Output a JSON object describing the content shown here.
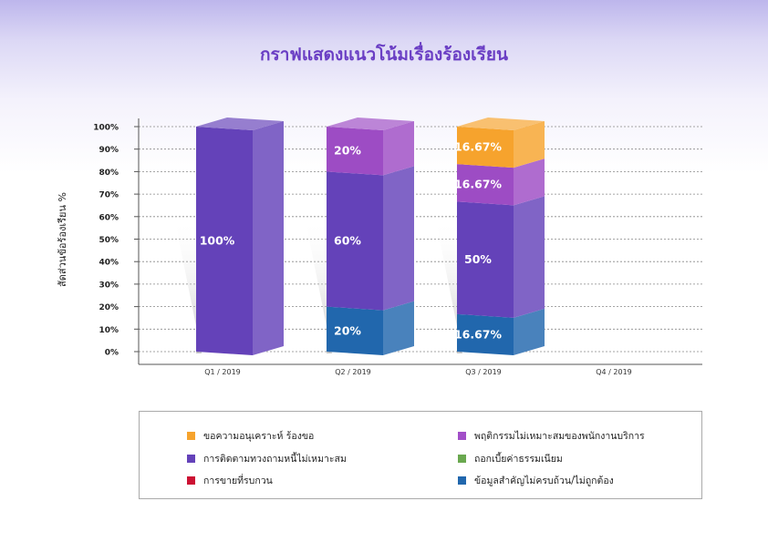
{
  "chart_data": {
    "type": "bar",
    "stacked": true,
    "title": "กราฟแสดงแนวโน้มเรื่องร้องเรียน",
    "ylabel": "สัดส่วนข้อร้องเรียน %",
    "xlabel": "",
    "ylim": [
      0,
      100
    ],
    "yticks": [
      "0%",
      "10%",
      "20%",
      "30%",
      "40%",
      "50%",
      "60%",
      "70%",
      "80%",
      "90%",
      "100%"
    ],
    "grid": true,
    "categories": [
      "Q1 / 2019",
      "Q2 / 2019",
      "Q3 / 2019",
      "Q4 / 2019"
    ],
    "series": [
      {
        "name": "ข้อมูลสำคัญไม่ครบถ้วน/ไม่ถูกต้อง",
        "color": "#2167ad",
        "values": [
          0,
          20,
          16.67,
          0
        ],
        "labels": [
          "",
          "20%",
          "16.67%",
          ""
        ]
      },
      {
        "name": "การติดตามทวงถามหนี้ไม่เหมาะสม",
        "color": "#6442b9",
        "values": [
          100,
          60,
          50,
          0
        ],
        "labels": [
          "100%",
          "60%",
          "50%",
          ""
        ]
      },
      {
        "name": "พฤติกรรมไม่เหมาะสมของพนักงานบริการ",
        "color": "#9d4cc4",
        "values": [
          0,
          20,
          16.67,
          0
        ],
        "labels": [
          "",
          "20%",
          "16.67%",
          ""
        ]
      },
      {
        "name": "ขอความอนุเคราะห์ ร้องขอ",
        "color": "#f6a32d",
        "values": [
          0,
          0,
          16.67,
          0
        ],
        "labels": [
          "",
          "",
          "16.67%",
          ""
        ]
      }
    ],
    "legend_position": "bottom"
  },
  "legend": {
    "items": [
      {
        "label": "ขอความอนุเคราะห์ ร้องขอ",
        "color": "#f6a32d"
      },
      {
        "label": "พฤติกรรมไม่เหมาะสมของพนักงานบริการ",
        "color": "#a24fc8"
      },
      {
        "label": "การติดตามทวงถามหนี้ไม่เหมาะสม",
        "color": "#6442b9"
      },
      {
        "label": "ถอกเบี้ยค่าธรรมเนียม",
        "color": "#6aa84f"
      },
      {
        "label": "การขายที่รบกวน",
        "color": "#cc1133"
      },
      {
        "label": "ข้อมูลสำคัญไม่ครบถ้วน/ไม่ถูกต้อง",
        "color": "#2167ad"
      }
    ]
  }
}
